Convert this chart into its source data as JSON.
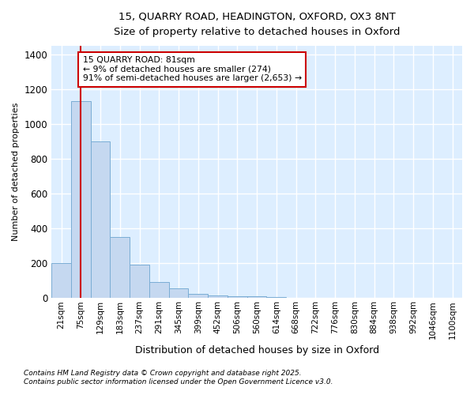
{
  "title_line1": "15, QUARRY ROAD, HEADINGTON, OXFORD, OX3 8NT",
  "title_line2": "Size of property relative to detached houses in Oxford",
  "xlabel": "Distribution of detached houses by size in Oxford",
  "ylabel": "Number of detached properties",
  "bar_labels": [
    "21sqm",
    "75sqm",
    "129sqm",
    "183sqm",
    "237sqm",
    "291sqm",
    "345sqm",
    "399sqm",
    "452sqm",
    "506sqm",
    "560sqm",
    "614sqm",
    "668sqm",
    "722sqm",
    "776sqm",
    "830sqm",
    "884sqm",
    "938sqm",
    "992sqm",
    "1046sqm",
    "1100sqm"
  ],
  "bar_values": [
    200,
    1130,
    900,
    350,
    190,
    90,
    55,
    25,
    15,
    10,
    10,
    5,
    3,
    2,
    1,
    1,
    1,
    1,
    1,
    1,
    1
  ],
  "bar_color": "#c5d8f0",
  "bar_edgecolor": "#7aadd4",
  "vline_x": 1,
  "vline_color": "#cc0000",
  "ylim": [
    0,
    1450
  ],
  "yticks": [
    0,
    200,
    400,
    600,
    800,
    1000,
    1200,
    1400
  ],
  "annotation_text": "15 QUARRY ROAD: 81sqm\n← 9% of detached houses are smaller (274)\n91% of semi-detached houses are larger (2,653) →",
  "annotation_box_color": "#ffffff",
  "annotation_box_edgecolor": "#cc0000",
  "footnote1": "Contains HM Land Registry data © Crown copyright and database right 2025.",
  "footnote2": "Contains public sector information licensed under the Open Government Licence v3.0.",
  "bg_color": "#ffffff",
  "plot_bg_color": "#ddeeff",
  "grid_color": "#ffffff"
}
